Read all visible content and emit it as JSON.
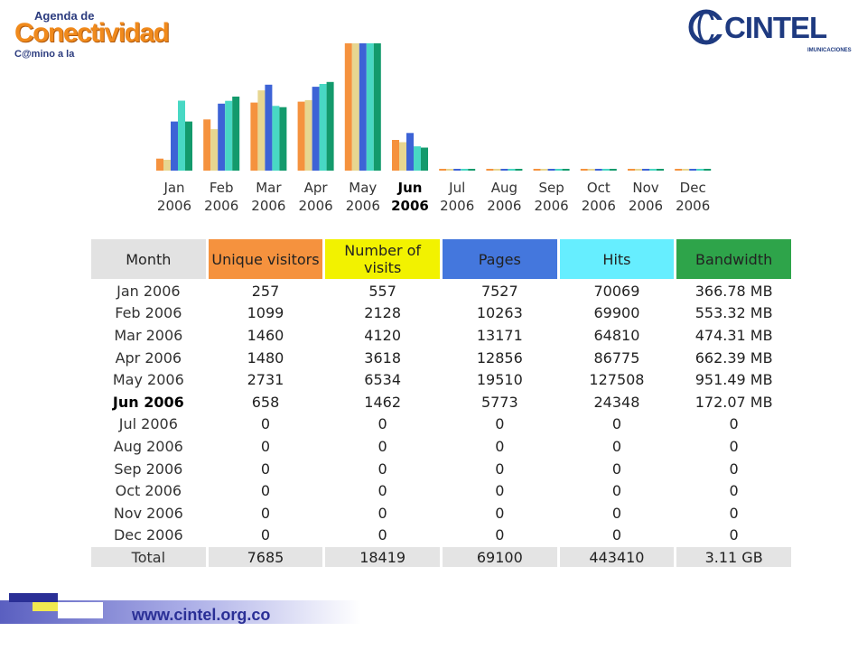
{
  "logos": {
    "left": {
      "line1": "Agenda de",
      "line2": "Conectividad",
      "line3": "C@mino a la"
    },
    "right": {
      "name": "CINTEL",
      "sub": "IMUNICACIONES"
    }
  },
  "colors": {
    "unique": "#f5923e",
    "visits": "#f2f200",
    "pages": "#4477dd",
    "hits": "#66eeff",
    "bandwidth": "#2ea44a",
    "header_neutral": "#e2e2e2"
  },
  "chart_data": {
    "type": "bar",
    "current_month": "Jun",
    "categories": [
      {
        "month": "Jan",
        "year": "2006"
      },
      {
        "month": "Feb",
        "year": "2006"
      },
      {
        "month": "Mar",
        "year": "2006"
      },
      {
        "month": "Apr",
        "year": "2006"
      },
      {
        "month": "May",
        "year": "2006"
      },
      {
        "month": "Jun",
        "year": "2006"
      },
      {
        "month": "Jul",
        "year": "2006"
      },
      {
        "month": "Aug",
        "year": "2006"
      },
      {
        "month": "Sep",
        "year": "2006"
      },
      {
        "month": "Oct",
        "year": "2006"
      },
      {
        "month": "Nov",
        "year": "2006"
      },
      {
        "month": "Dec",
        "year": "2006"
      }
    ],
    "series": [
      {
        "key": "unique",
        "color": "#f5923e",
        "values": [
          257,
          1099,
          1460,
          1480,
          2731,
          658,
          0,
          0,
          0,
          0,
          0,
          0
        ]
      },
      {
        "key": "visits",
        "color": "#e7d690",
        "values": [
          557,
          2128,
          4120,
          3618,
          6534,
          1462,
          0,
          0,
          0,
          0,
          0,
          0
        ]
      },
      {
        "key": "pages",
        "color": "#3d63d6",
        "values": [
          7527,
          10263,
          13171,
          12856,
          19510,
          5773,
          0,
          0,
          0,
          0,
          0,
          0
        ]
      },
      {
        "key": "hits",
        "color": "#48d8c4",
        "values": [
          70069,
          69900,
          64810,
          86775,
          127508,
          24348,
          0,
          0,
          0,
          0,
          0,
          0
        ]
      },
      {
        "key": "bandwidth",
        "color": "#139a6c",
        "values": [
          366.78,
          553.32,
          474.31,
          662.39,
          951.49,
          172.07,
          0,
          0,
          0,
          0,
          0,
          0
        ]
      }
    ],
    "grid": false
  },
  "table": {
    "headers": {
      "month": "Month",
      "unique": "Unique visitors",
      "visits": "Number of visits",
      "pages": "Pages",
      "hits": "Hits",
      "bandwidth": "Bandwidth"
    },
    "rows": [
      {
        "month": "Jan 2006",
        "unique": "257",
        "visits": "557",
        "pages": "7527",
        "hits": "70069",
        "bandwidth": "366.78 MB"
      },
      {
        "month": "Feb 2006",
        "unique": "1099",
        "visits": "2128",
        "pages": "10263",
        "hits": "69900",
        "bandwidth": "553.32 MB"
      },
      {
        "month": "Mar 2006",
        "unique": "1460",
        "visits": "4120",
        "pages": "13171",
        "hits": "64810",
        "bandwidth": "474.31 MB"
      },
      {
        "month": "Apr 2006",
        "unique": "1480",
        "visits": "3618",
        "pages": "12856",
        "hits": "86775",
        "bandwidth": "662.39 MB"
      },
      {
        "month": "May 2006",
        "unique": "2731",
        "visits": "6534",
        "pages": "19510",
        "hits": "127508",
        "bandwidth": "951.49 MB"
      },
      {
        "month": "Jun 2006",
        "unique": "658",
        "visits": "1462",
        "pages": "5773",
        "hits": "24348",
        "bandwidth": "172.07 MB"
      },
      {
        "month": "Jul 2006",
        "unique": "0",
        "visits": "0",
        "pages": "0",
        "hits": "0",
        "bandwidth": "0"
      },
      {
        "month": "Aug 2006",
        "unique": "0",
        "visits": "0",
        "pages": "0",
        "hits": "0",
        "bandwidth": "0"
      },
      {
        "month": "Sep 2006",
        "unique": "0",
        "visits": "0",
        "pages": "0",
        "hits": "0",
        "bandwidth": "0"
      },
      {
        "month": "Oct 2006",
        "unique": "0",
        "visits": "0",
        "pages": "0",
        "hits": "0",
        "bandwidth": "0"
      },
      {
        "month": "Nov 2006",
        "unique": "0",
        "visits": "0",
        "pages": "0",
        "hits": "0",
        "bandwidth": "0"
      },
      {
        "month": "Dec 2006",
        "unique": "0",
        "visits": "0",
        "pages": "0",
        "hits": "0",
        "bandwidth": "0"
      }
    ],
    "total": {
      "month": "Total",
      "unique": "7685",
      "visits": "18419",
      "pages": "69100",
      "hits": "443410",
      "bandwidth": "3.11 GB"
    }
  },
  "footer": {
    "url": "www.cintel.org.co"
  }
}
